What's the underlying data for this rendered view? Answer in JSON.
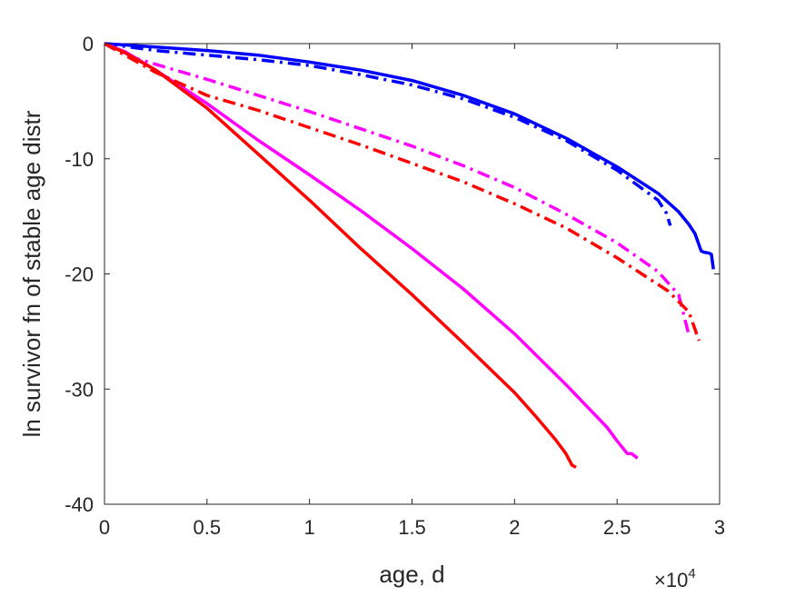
{
  "chart_data": {
    "type": "line",
    "title": "",
    "xlabel": "age, d",
    "ylabel": "ln survivor fn of stable age distr",
    "x_multiplier_label": "×10",
    "x_multiplier_exponent": "4",
    "xlim": [
      0,
      3
    ],
    "ylim": [
      -40,
      0
    ],
    "xticks": [
      0,
      0.5,
      1,
      1.5,
      2,
      2.5,
      3
    ],
    "xtick_labels": [
      "0",
      "0.5",
      "1",
      "1.5",
      "2",
      "2.5",
      "3"
    ],
    "yticks": [
      0,
      -10,
      -20,
      -30,
      -40
    ],
    "ytick_labels": [
      "0",
      "-10",
      "-20",
      "-30",
      "-40"
    ],
    "grid": false,
    "legend": "none",
    "series": [
      {
        "color": "#0000ff",
        "style": "solid",
        "x": [
          0,
          0.25,
          0.5,
          0.75,
          1.0,
          1.25,
          1.5,
          1.75,
          2.0,
          2.25,
          2.5,
          2.7,
          2.8,
          2.85,
          2.88,
          2.91,
          2.92,
          2.95,
          2.96,
          2.97
        ],
        "y": [
          0,
          -0.3,
          -0.6,
          -1.0,
          -1.6,
          -2.3,
          -3.2,
          -4.5,
          -6.1,
          -8.2,
          -10.7,
          -13.0,
          -14.6,
          -15.7,
          -16.5,
          -18.0,
          -18.1,
          -18.2,
          -18.3,
          -19.6
        ]
      },
      {
        "color": "#0000ff",
        "style": "dashdot",
        "x": [
          0,
          0.25,
          0.5,
          0.75,
          1.0,
          1.25,
          1.5,
          1.75,
          2.0,
          2.25,
          2.5,
          2.6,
          2.7,
          2.74,
          2.76
        ],
        "y": [
          0,
          -0.6,
          -1.0,
          -1.4,
          -1.9,
          -2.7,
          -3.6,
          -4.8,
          -6.4,
          -8.4,
          -11.0,
          -12.3,
          -13.6,
          -14.7,
          -15.8
        ]
      },
      {
        "color": "#ff00ff",
        "style": "solid",
        "x": [
          0,
          0.1,
          0.25,
          0.5,
          0.75,
          1.0,
          1.25,
          1.5,
          1.75,
          2.0,
          2.25,
          2.45,
          2.5,
          2.55,
          2.57,
          2.6
        ],
        "y": [
          0,
          -0.7,
          -2.3,
          -5.2,
          -8.4,
          -11.4,
          -14.5,
          -17.8,
          -21.3,
          -25.2,
          -29.6,
          -33.3,
          -34.5,
          -35.6,
          -35.6,
          -36.0
        ]
      },
      {
        "color": "#ff00ff",
        "style": "dashdot",
        "x": [
          0,
          0.1,
          0.25,
          0.5,
          0.75,
          1.0,
          1.25,
          1.5,
          1.75,
          2.0,
          2.25,
          2.5,
          2.7,
          2.8,
          2.85
        ],
        "y": [
          0,
          -1.0,
          -1.8,
          -3.1,
          -4.5,
          -5.9,
          -7.4,
          -8.9,
          -10.6,
          -12.5,
          -14.8,
          -17.3,
          -19.8,
          -21.8,
          -25.3
        ]
      },
      {
        "color": "#ff0000",
        "style": "solid",
        "x": [
          0,
          0.1,
          0.25,
          0.5,
          0.75,
          1.0,
          1.25,
          1.5,
          1.75,
          2.0,
          2.1,
          2.2,
          2.25,
          2.28,
          2.3
        ],
        "y": [
          0,
          -0.8,
          -2.3,
          -5.6,
          -9.6,
          -13.6,
          -17.8,
          -21.8,
          -26.0,
          -30.3,
          -32.3,
          -34.4,
          -35.6,
          -36.6,
          -36.8
        ]
      },
      {
        "color": "#ff0000",
        "style": "dashdot",
        "x": [
          0,
          0.1,
          0.25,
          0.5,
          0.75,
          1.0,
          1.25,
          1.5,
          1.75,
          2.0,
          2.25,
          2.5,
          2.75,
          2.85,
          2.9
        ],
        "y": [
          0,
          -1.0,
          -2.5,
          -4.5,
          -5.8,
          -7.3,
          -8.8,
          -10.4,
          -12.0,
          -13.9,
          -16.0,
          -18.6,
          -21.5,
          -23.3,
          -25.8
        ]
      }
    ]
  }
}
